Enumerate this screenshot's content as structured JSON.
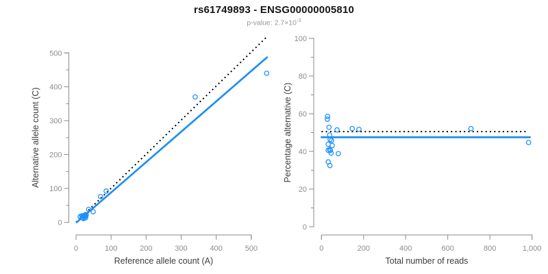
{
  "header": {
    "title": "rs61749893 - ENSG00000005810",
    "pvalue_prefix": "p-value: ",
    "pvalue_base": "2.7×10",
    "pvalue_exponent": "-3"
  },
  "colors": {
    "point_blue": "#1E90FF",
    "fit_line_blue": "#1E8FF2",
    "dotted_line_black": "#000000",
    "axis_gray": "#8A8A8A",
    "tick_label_gray": "#8C8C8C",
    "axis_title_gray": "#3D3D3D",
    "title_black": "#151515",
    "subtitle_gray": "#979797"
  },
  "chart_data": [
    {
      "id": "allele-count-scatter",
      "type": "scatter",
      "xlabel": "Reference allele count (A)",
      "ylabel": "Alternative allele count (C)",
      "xlim": [
        0,
        500
      ],
      "ylim": [
        0,
        500
      ],
      "grid": false,
      "xticks": [
        0,
        100,
        200,
        300,
        400,
        500
      ],
      "xtick_labels": [
        "0",
        "100",
        "200",
        "300",
        "400",
        "500"
      ],
      "yticks": [
        0,
        100,
        200,
        300,
        400,
        500
      ],
      "ytick_labels": [
        "0",
        "100",
        "200",
        "300",
        "400",
        "500"
      ],
      "y_minor_ticks": [
        50,
        150,
        250,
        350,
        450
      ],
      "points_xy": [
        [
          12,
          17
        ],
        [
          12,
          16
        ],
        [
          17,
          19
        ],
        [
          20,
          19
        ],
        [
          22,
          19
        ],
        [
          26,
          22
        ],
        [
          18,
          14
        ],
        [
          29,
          22
        ],
        [
          19,
          13
        ],
        [
          23,
          16
        ],
        [
          25,
          17
        ],
        [
          28,
          18
        ],
        [
          21,
          11
        ],
        [
          27,
          13
        ],
        [
          36,
          38
        ],
        [
          49,
          31
        ],
        [
          70,
          76
        ],
        [
          86,
          92
        ],
        [
          340,
          370
        ],
        [
          544,
          440
        ]
      ],
      "lines": [
        {
          "name": "identity-dotted-line",
          "style": "dotted",
          "color": "black",
          "from": [
            0,
            0
          ],
          "to": [
            547,
            550
          ]
        },
        {
          "name": "regression-fit-line",
          "style": "solid",
          "color": "blue",
          "from": [
            2,
            0
          ],
          "to": [
            545,
            487
          ]
        }
      ]
    },
    {
      "id": "percentage-scatter",
      "type": "scatter",
      "xlabel": "Total number of reads",
      "ylabel": "Percentage alternative (C)",
      "xlim": [
        0,
        1000
      ],
      "ylim": [
        0,
        100
      ],
      "grid": false,
      "xticks": [
        0,
        200,
        400,
        600,
        800,
        1000
      ],
      "xtick_labels": [
        "0",
        "200",
        "400",
        "600",
        "800",
        "1,000"
      ],
      "yticks": [
        0,
        20,
        40,
        60,
        80,
        100
      ],
      "ytick_labels": [
        "0",
        "20",
        "40",
        "60",
        "80",
        "100"
      ],
      "y_minor_ticks": [
        10,
        30,
        50,
        70,
        90
      ],
      "points_xy": [
        [
          29,
          58.6
        ],
        [
          28,
          57.1
        ],
        [
          36,
          52.8
        ],
        [
          39,
          48.7
        ],
        [
          41,
          46.3
        ],
        [
          48,
          45.8
        ],
        [
          32,
          43.8
        ],
        [
          51,
          43.1
        ],
        [
          32,
          40.6
        ],
        [
          39,
          41.0
        ],
        [
          42,
          40.5
        ],
        [
          46,
          39.1
        ],
        [
          80,
          38.8
        ],
        [
          32,
          34.4
        ],
        [
          40,
          32.5
        ],
        [
          74,
          51.4
        ],
        [
          146,
          52.1
        ],
        [
          178,
          51.7
        ],
        [
          710,
          52.1
        ],
        [
          984,
          44.7
        ]
      ],
      "lines": [
        {
          "name": "expected-50pct-dotted-line",
          "style": "dotted",
          "color": "black",
          "from": [
            0,
            50.5
          ],
          "to": [
            980,
            50.5
          ]
        },
        {
          "name": "mean-fit-line",
          "style": "solid",
          "color": "blue",
          "from": [
            0,
            47.5
          ],
          "to": [
            990,
            47.5
          ]
        }
      ]
    }
  ]
}
